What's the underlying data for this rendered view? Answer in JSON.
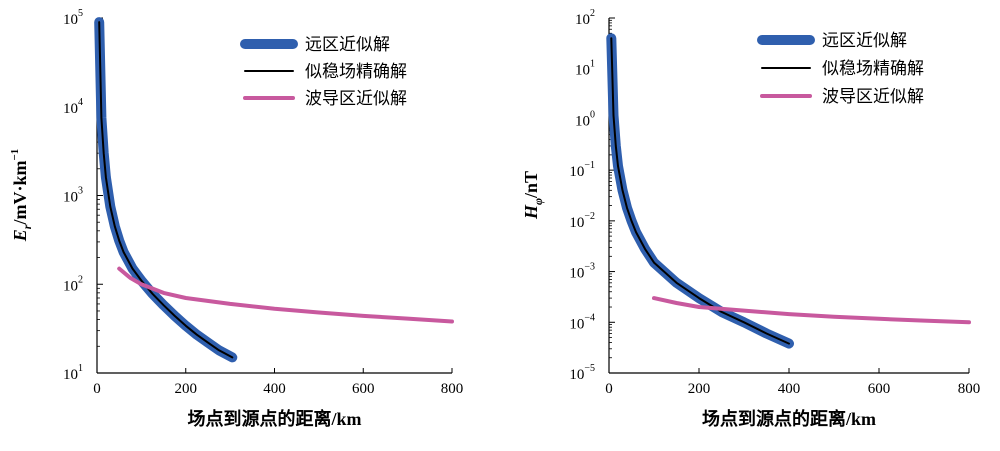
{
  "chart_data": [
    {
      "type": "line",
      "xlabel": "场点到源点的距离/km",
      "ylabel_parts": {
        "main": "E",
        "sub": "r",
        "rest": "/mV·km",
        "sup": "−1"
      },
      "xlim": [
        0,
        800
      ],
      "ylim": [
        10,
        100000
      ],
      "yscale": "log",
      "xticks": [
        0,
        200,
        400,
        600,
        800
      ],
      "yticks": [
        {
          "v": 10,
          "base": "10",
          "exp": "1"
        },
        {
          "v": 100,
          "base": "10",
          "exp": "2"
        },
        {
          "v": 1000,
          "base": "10",
          "exp": "3"
        },
        {
          "v": 10000,
          "base": "10",
          "exp": "4"
        },
        {
          "v": 100000,
          "base": "10",
          "exp": "5"
        }
      ],
      "legend_position": "top-right",
      "series": [
        {
          "name": "远区近似解",
          "color": "#2f5fae",
          "style": "thick",
          "x": [
            5,
            10,
            15,
            20,
            30,
            40,
            50,
            60,
            80,
            100,
            125,
            150,
            175,
            200,
            225,
            250,
            275,
            305
          ],
          "y": [
            90000,
            7500,
            3000,
            1600,
            750,
            450,
            310,
            230,
            150,
            110,
            78,
            58,
            44,
            34,
            27,
            22,
            18,
            15
          ]
        },
        {
          "name": "似稳场精确解",
          "color": "#000000",
          "style": "thin",
          "x": [
            5,
            10,
            15,
            20,
            30,
            40,
            50,
            60,
            80,
            100,
            125,
            150,
            175,
            200,
            225,
            250,
            275,
            305
          ],
          "y": [
            90000,
            7500,
            3000,
            1600,
            750,
            450,
            310,
            230,
            150,
            110,
            78,
            58,
            44,
            34,
            27,
            22,
            18,
            15
          ]
        },
        {
          "name": "波导区近似解",
          "color": "#c8599e",
          "style": "medium",
          "x": [
            50,
            75,
            100,
            150,
            200,
            300,
            400,
            500,
            600,
            700,
            800
          ],
          "y": [
            150,
            118,
            100,
            80,
            70,
            60,
            53,
            48,
            44,
            41,
            38
          ]
        }
      ]
    },
    {
      "type": "line",
      "xlabel": "场点到源点的距离/km",
      "ylabel_parts": {
        "main": "H",
        "sub": "φ",
        "rest": "/nT"
      },
      "xlim": [
        0,
        800
      ],
      "ylim": [
        1e-05,
        100
      ],
      "yscale": "log",
      "xticks": [
        0,
        200,
        400,
        600,
        800
      ],
      "yticks": [
        {
          "v": 1e-05,
          "base": "10",
          "exp": "−5"
        },
        {
          "v": 0.0001,
          "base": "10",
          "exp": "−4"
        },
        {
          "v": 0.001,
          "base": "10",
          "exp": "−3"
        },
        {
          "v": 0.01,
          "base": "10",
          "exp": "−2"
        },
        {
          "v": 0.1,
          "base": "10",
          "exp": "−1"
        },
        {
          "v": 1,
          "base": "10",
          "exp": "0"
        },
        {
          "v": 10,
          "base": "10",
          "exp": "1"
        },
        {
          "v": 100,
          "base": "10",
          "exp": "2"
        }
      ],
      "legend_position": "top-right",
      "series": [
        {
          "name": "远区近似解",
          "color": "#2f5fae",
          "style": "thick",
          "x": [
            5,
            10,
            15,
            20,
            30,
            40,
            50,
            60,
            80,
            100,
            150,
            200,
            250,
            300,
            350,
            400
          ],
          "y": [
            40,
            1.2,
            0.3,
            0.12,
            0.04,
            0.018,
            0.01,
            0.006,
            0.0028,
            0.0015,
            0.0006,
            0.0003,
            0.00016,
            0.0001,
            6e-05,
            3.8e-05
          ]
        },
        {
          "name": "似稳场精确解",
          "color": "#000000",
          "style": "thin",
          "x": [
            5,
            10,
            15,
            20,
            30,
            40,
            50,
            60,
            80,
            100,
            150,
            200,
            250,
            300,
            350,
            400
          ],
          "y": [
            40,
            1.2,
            0.3,
            0.12,
            0.04,
            0.018,
            0.01,
            0.006,
            0.0028,
            0.0015,
            0.0006,
            0.0003,
            0.00016,
            0.0001,
            6e-05,
            3.8e-05
          ]
        },
        {
          "name": "波导区近似解",
          "color": "#c8599e",
          "style": "medium",
          "x": [
            100,
            150,
            200,
            300,
            400,
            500,
            600,
            700,
            800
          ],
          "y": [
            0.0003,
            0.00024,
            0.0002,
            0.00017,
            0.000145,
            0.000128,
            0.000117,
            0.000108,
            0.0001
          ]
        }
      ]
    }
  ]
}
